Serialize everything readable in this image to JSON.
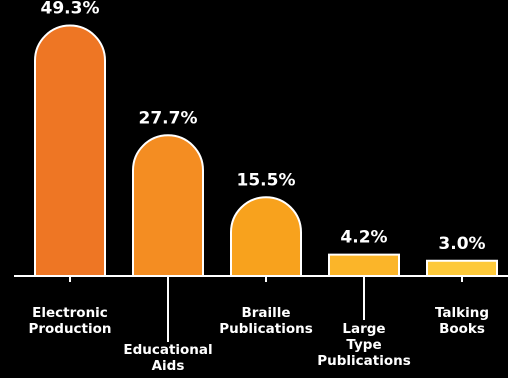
{
  "chart_data": {
    "type": "bar",
    "categories": [
      [
        "Electronic",
        "Production"
      ],
      [
        "Educational",
        "Aids"
      ],
      [
        "Braille",
        "Publications"
      ],
      [
        "Large",
        "Type",
        "Publications"
      ],
      [
        "Talking",
        "Books"
      ]
    ],
    "values": [
      49.3,
      27.7,
      15.5,
      4.2,
      3.0
    ],
    "value_labels": [
      "49.3%",
      "27.7%",
      "15.5%",
      "4.2%",
      "3.0%"
    ],
    "ylim": [
      0,
      50
    ],
    "title": "",
    "xlabel": "",
    "ylabel": "",
    "grid": false,
    "colors": {
      "background": "#000000",
      "outline": "#ffffff",
      "bars": [
        "#ee7624",
        "#f48d22",
        "#f8a21d",
        "#fbb529",
        "#fdc93a"
      ]
    }
  }
}
